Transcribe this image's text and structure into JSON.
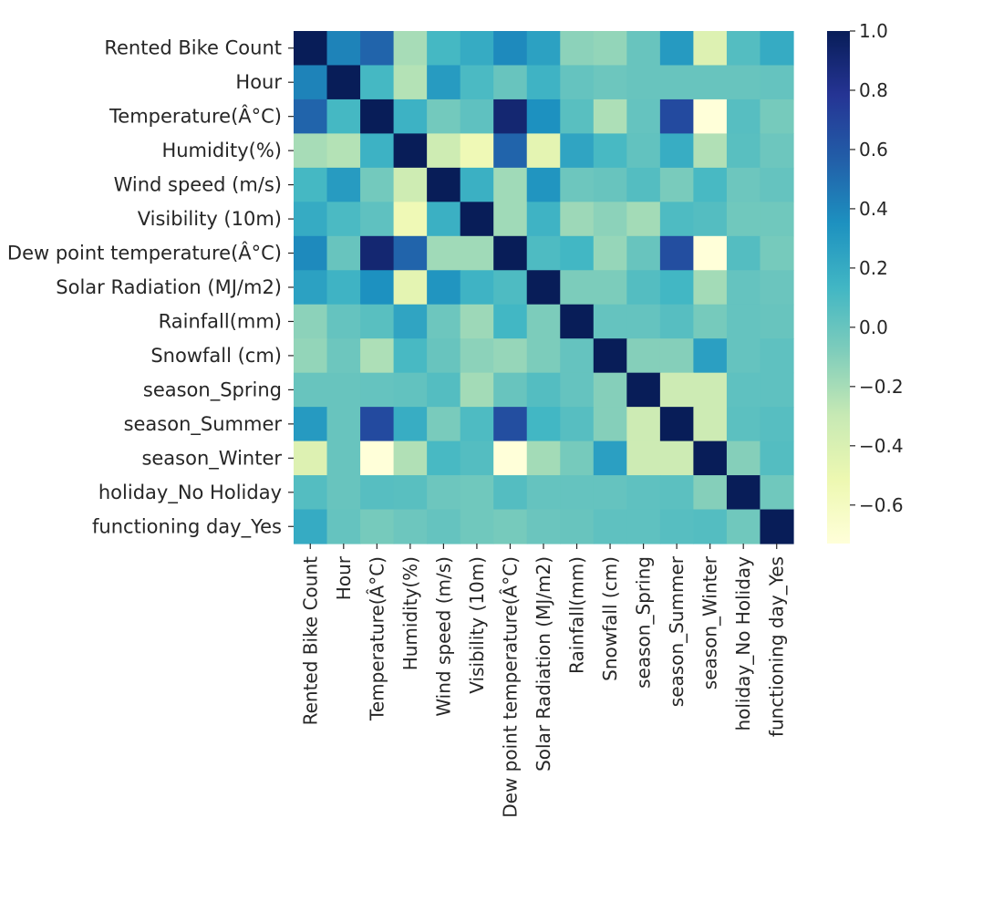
{
  "chart_data": {
    "type": "heatmap",
    "title": "",
    "xlabel": "",
    "ylabel": "",
    "colormap": "YlGnBu",
    "vmin": -0.73,
    "vmax": 1.0,
    "labels": [
      "Rented Bike Count",
      "Hour",
      "Temperature(Â°C)",
      "Humidity(%)",
      "Wind speed (m/s)",
      "Visibility (10m)",
      "Dew point temperature(Â°C)",
      "Solar Radiation (MJ/m2)",
      "Rainfall(mm)",
      "Snowfall (cm)",
      "season_Spring",
      "season_Summer",
      "season_Winter",
      "holiday_No Holiday",
      "functioning day_Yes"
    ],
    "colorbar_ticks": [
      "1.0",
      "0.8",
      "0.6",
      "0.4",
      "0.2",
      "0.0",
      "−0.2",
      "−0.4",
      "−0.6"
    ],
    "colorbar_tick_values": [
      1.0,
      0.8,
      0.6,
      0.4,
      0.2,
      0.0,
      -0.2,
      -0.4,
      -0.6
    ],
    "values": [
      [
        1.0,
        0.41,
        0.54,
        -0.2,
        0.12,
        0.2,
        0.38,
        0.26,
        -0.12,
        -0.14,
        0.0,
        0.3,
        -0.42,
        0.07,
        0.2
      ],
      [
        0.41,
        1.0,
        0.12,
        -0.24,
        0.29,
        0.1,
        0.0,
        0.15,
        0.01,
        -0.02,
        0.0,
        0.0,
        0.0,
        0.0,
        0.01
      ],
      [
        0.54,
        0.12,
        1.0,
        0.16,
        -0.04,
        0.03,
        0.91,
        0.35,
        0.05,
        -0.22,
        0.01,
        0.67,
        -0.74,
        0.06,
        -0.05
      ],
      [
        -0.2,
        -0.24,
        0.16,
        1.0,
        -0.34,
        -0.54,
        0.54,
        -0.46,
        0.24,
        0.11,
        0.02,
        0.19,
        -0.23,
        0.05,
        -0.02
      ],
      [
        0.12,
        0.29,
        -0.04,
        -0.34,
        1.0,
        0.17,
        -0.18,
        0.33,
        -0.02,
        0.0,
        0.07,
        -0.06,
        0.11,
        -0.02,
        0.01
      ],
      [
        0.2,
        0.1,
        0.03,
        -0.54,
        0.17,
        1.0,
        -0.18,
        0.15,
        -0.17,
        -0.12,
        -0.19,
        0.09,
        0.07,
        -0.03,
        -0.03
      ],
      [
        0.38,
        0.0,
        0.91,
        0.54,
        -0.18,
        -0.18,
        1.0,
        0.09,
        0.13,
        -0.15,
        0.0,
        0.65,
        -0.73,
        0.07,
        -0.05
      ],
      [
        0.26,
        0.15,
        0.35,
        -0.46,
        0.33,
        0.15,
        0.09,
        1.0,
        -0.07,
        -0.07,
        0.07,
        0.13,
        -0.19,
        0.01,
        -0.01
      ],
      [
        -0.12,
        0.01,
        0.05,
        0.24,
        -0.02,
        -0.17,
        0.13,
        -0.07,
        1.0,
        0.01,
        0.01,
        0.06,
        -0.05,
        0.01,
        0.0
      ],
      [
        -0.14,
        -0.02,
        -0.22,
        0.11,
        0.0,
        -0.12,
        -0.15,
        -0.07,
        0.01,
        1.0,
        -0.1,
        -0.1,
        0.27,
        0.01,
        0.03
      ],
      [
        0.0,
        0.0,
        0.01,
        0.02,
        0.07,
        -0.19,
        0.0,
        0.07,
        0.01,
        -0.1,
        1.0,
        -0.33,
        -0.33,
        0.03,
        0.03
      ],
      [
        0.3,
        0.0,
        0.67,
        0.19,
        -0.06,
        0.09,
        0.65,
        0.13,
        0.06,
        -0.1,
        -0.33,
        1.0,
        -0.33,
        0.04,
        0.06
      ],
      [
        -0.42,
        0.0,
        -0.74,
        -0.23,
        0.11,
        0.07,
        -0.73,
        -0.19,
        -0.05,
        0.27,
        -0.33,
        -0.33,
        1.0,
        -0.1,
        0.07
      ],
      [
        0.07,
        0.0,
        0.06,
        0.05,
        -0.02,
        -0.03,
        0.07,
        0.01,
        0.01,
        0.01,
        0.03,
        0.04,
        -0.1,
        1.0,
        -0.03
      ],
      [
        0.2,
        0.01,
        -0.05,
        -0.02,
        0.01,
        -0.03,
        -0.05,
        -0.01,
        0.0,
        0.03,
        0.03,
        0.06,
        0.07,
        -0.03,
        1.0
      ]
    ]
  }
}
